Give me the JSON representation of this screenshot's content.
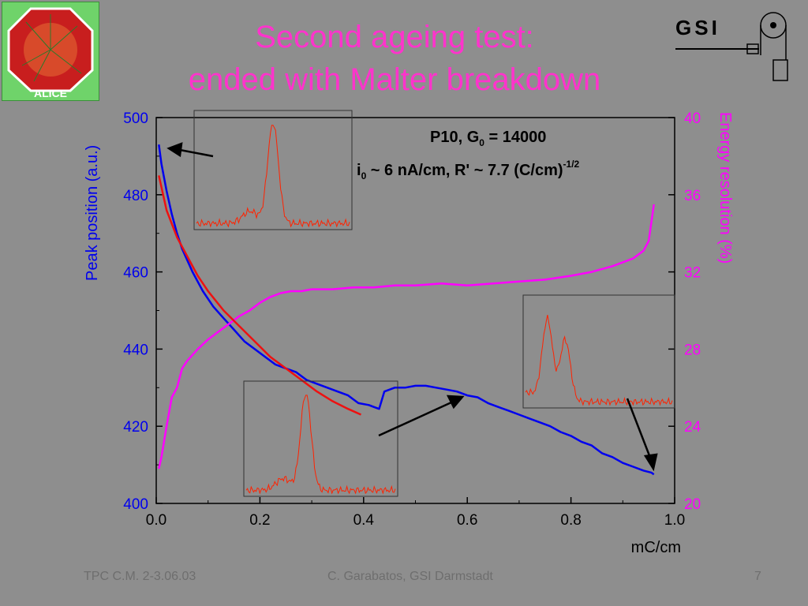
{
  "slide": {
    "title_line1": "Second ageing test:",
    "title_line2": "ended with Malter breakdown",
    "footer_left": "TPC C.M. 2-3.06.03",
    "footer_center": "C. Garabatos, GSI Darmstadt",
    "page_number": "7",
    "logo_left_text": "ALICE",
    "logo_right_text": "GSI"
  },
  "colors": {
    "background": "#8e8e8e",
    "title": "#ff33cc",
    "peak_series": "#0000ee",
    "resolution_series": "#ff00ff",
    "fit": "#ee1111",
    "inset_line": "#ff2200"
  },
  "chart_data": {
    "type": "line",
    "xlabel": "mC/cm",
    "ylabel_left": "Peak position (a.u.)",
    "ylabel_right": "Energy resolution (%)",
    "xlim": [
      0.0,
      1.0
    ],
    "ylim_left": [
      400,
      500
    ],
    "ylim_right": [
      20,
      40
    ],
    "x_ticks": [
      "0.0",
      "0.2",
      "0.4",
      "0.6",
      "0.8",
      "1.0"
    ],
    "y_ticks_left": [
      "400",
      "420",
      "440",
      "460",
      "480",
      "500"
    ],
    "y_ticks_right": [
      "20",
      "24",
      "28",
      "32",
      "36",
      "40"
    ],
    "annotation_line1": {
      "main": "P10, G",
      "sub": "0",
      "rest": " = 14000"
    },
    "annotation_line2": {
      "main": "i",
      "sub": "0",
      "rest": " ~ 6 nA/cm, R' ~ 7.7 (C/cm)",
      "sup": "-1/2"
    },
    "series": [
      {
        "axis": "left",
        "x": [
          0.005,
          0.01,
          0.02,
          0.03,
          0.04,
          0.05,
          0.07,
          0.09,
          0.11,
          0.13,
          0.15,
          0.17,
          0.19,
          0.21,
          0.23,
          0.25,
          0.27,
          0.29,
          0.31,
          0.33,
          0.35,
          0.37,
          0.39,
          0.41,
          0.42,
          0.43,
          0.44,
          0.46,
          0.48,
          0.5,
          0.52,
          0.54,
          0.56,
          0.58,
          0.6,
          0.62,
          0.64,
          0.66,
          0.68,
          0.7,
          0.72,
          0.74,
          0.76,
          0.78,
          0.8,
          0.82,
          0.84,
          0.86,
          0.88,
          0.9,
          0.92,
          0.94,
          0.955,
          0.96
        ],
        "y": [
          493,
          488,
          481,
          475,
          470,
          466,
          460,
          455,
          451,
          448,
          445,
          442,
          440,
          438,
          436,
          435,
          434,
          432,
          431,
          430,
          429,
          428,
          426,
          425.5,
          425,
          424.5,
          429,
          430,
          430,
          430.5,
          430.5,
          430,
          429.5,
          429,
          428,
          427.5,
          426,
          425,
          424,
          423,
          422,
          421,
          420,
          418.5,
          417.5,
          416,
          415,
          413,
          412,
          410.5,
          409.5,
          408.5,
          408,
          407.5
        ]
      },
      {
        "axis": "right",
        "x": [
          0.005,
          0.01,
          0.02,
          0.03,
          0.04,
          0.05,
          0.06,
          0.08,
          0.1,
          0.12,
          0.14,
          0.16,
          0.18,
          0.2,
          0.22,
          0.24,
          0.26,
          0.28,
          0.3,
          0.34,
          0.38,
          0.42,
          0.46,
          0.5,
          0.55,
          0.6,
          0.65,
          0.7,
          0.75,
          0.8,
          0.84,
          0.88,
          0.9,
          0.92,
          0.94,
          0.95,
          0.96
        ],
        "y": [
          21.8,
          22.4,
          24.0,
          25.5,
          26.0,
          27.0,
          27.4,
          28.0,
          28.5,
          28.9,
          29.3,
          29.7,
          30.0,
          30.4,
          30.7,
          30.9,
          31.0,
          31.0,
          31.1,
          31.1,
          31.2,
          31.2,
          31.3,
          31.3,
          31.4,
          31.3,
          31.4,
          31.5,
          31.6,
          31.8,
          32.0,
          32.3,
          32.5,
          32.7,
          33.1,
          33.6,
          35.5
        ]
      },
      {
        "axis": "left",
        "x": [
          0.005,
          0.02,
          0.04,
          0.06,
          0.08,
          0.1,
          0.13,
          0.16,
          0.19,
          0.22,
          0.25,
          0.28,
          0.31,
          0.34,
          0.37,
          0.395
        ],
        "y": [
          485,
          476,
          469,
          464,
          459,
          455,
          450,
          446,
          442,
          438,
          435,
          432,
          429,
          426.5,
          424.5,
          423
        ]
      }
    ],
    "insets": [
      {
        "peaks": [
          {
            "center": 0.5,
            "height": 1.0
          }
        ]
      },
      {
        "peaks": [
          {
            "center": 0.4,
            "height": 1.0
          }
        ]
      },
      {
        "peaks": [
          {
            "center": 0.15,
            "height": 0.8
          },
          {
            "center": 0.27,
            "height": 0.65
          }
        ]
      }
    ]
  }
}
